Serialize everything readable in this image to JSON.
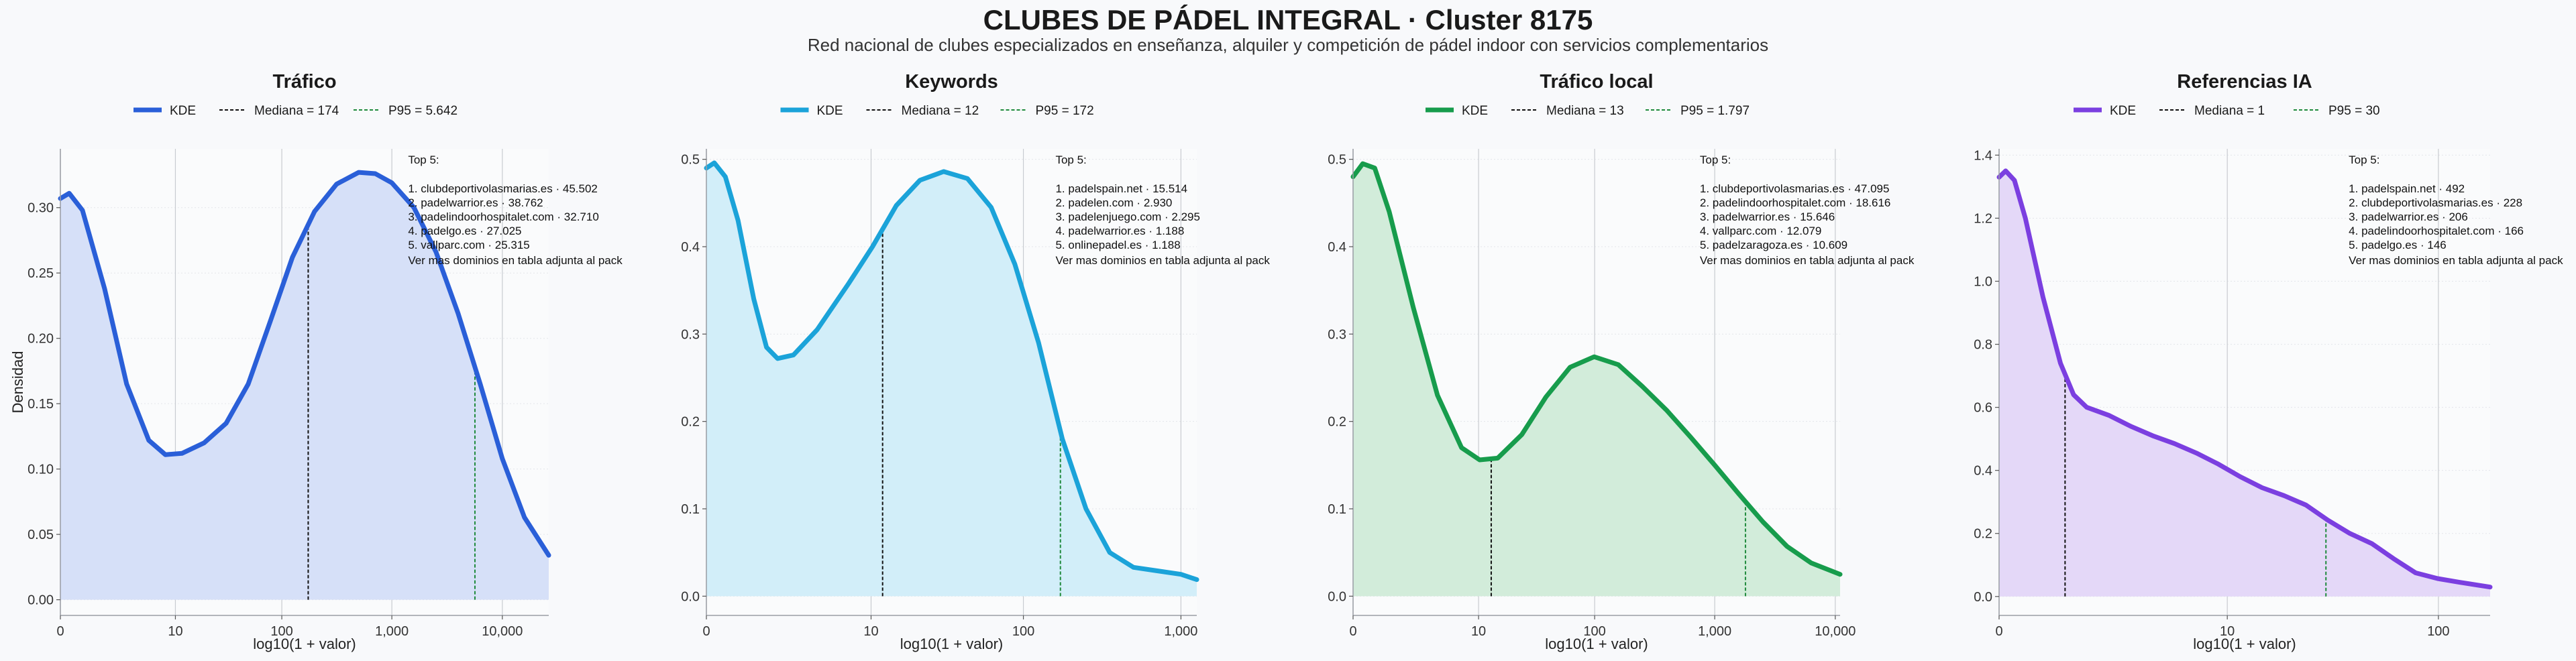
{
  "header": {
    "title": "CLUBES DE PÁDEL INTEGRAL · Cluster 8175",
    "subtitle": "Red nacional de clubes especializados en enseñanza, alquiler y competición de pádel indoor con servicios complementarios"
  },
  "shared": {
    "xlabel": "log10(1 + valor)",
    "ylabel": "Densidad",
    "legend_kde": "KDE",
    "top_title": "Top 5:",
    "footnote": "Ver mas dominios en tabla adjunta al pack",
    "median_color": "#111111",
    "p95_color": "#1f8a3c"
  },
  "chart_data": [
    {
      "type": "area",
      "title": "Tráfico",
      "color": "#2a5fd8",
      "fill": "#d6e0f8",
      "xlabel": "log10(1 + valor)",
      "ylabel": "Densidad",
      "xlim": [
        0,
        4.42
      ],
      "ylim": [
        -0.012,
        0.345
      ],
      "xticks": [
        {
          "v": 0,
          "label": "0"
        },
        {
          "v": 1.041,
          "label": "10"
        },
        {
          "v": 2.004,
          "label": "100"
        },
        {
          "v": 3.0,
          "label": "1,000"
        },
        {
          "v": 4.0,
          "label": "10,000"
        }
      ],
      "yticks": [
        {
          "v": 0,
          "label": "0.00"
        },
        {
          "v": 0.05,
          "label": "0.05"
        },
        {
          "v": 0.1,
          "label": "0.10"
        },
        {
          "v": 0.15,
          "label": "0.15"
        },
        {
          "v": 0.2,
          "label": "0.20"
        },
        {
          "v": 0.25,
          "label": "0.25"
        },
        {
          "v": 0.3,
          "label": "0.30"
        }
      ],
      "curve": [
        [
          0,
          0.307
        ],
        [
          0.08,
          0.311
        ],
        [
          0.2,
          0.298
        ],
        [
          0.4,
          0.238
        ],
        [
          0.6,
          0.165
        ],
        [
          0.8,
          0.122
        ],
        [
          0.95,
          0.111
        ],
        [
          1.1,
          0.112
        ],
        [
          1.3,
          0.12
        ],
        [
          1.5,
          0.135
        ],
        [
          1.7,
          0.165
        ],
        [
          1.9,
          0.213
        ],
        [
          2.1,
          0.262
        ],
        [
          2.3,
          0.297
        ],
        [
          2.5,
          0.318
        ],
        [
          2.7,
          0.327
        ],
        [
          2.85,
          0.326
        ],
        [
          3.0,
          0.319
        ],
        [
          3.2,
          0.3
        ],
        [
          3.4,
          0.266
        ],
        [
          3.6,
          0.219
        ],
        [
          3.8,
          0.165
        ],
        [
          4.0,
          0.108
        ],
        [
          4.2,
          0.063
        ],
        [
          4.42,
          0.034
        ]
      ],
      "median": {
        "x": 2.243,
        "label": "Mediana = 174"
      },
      "p95": {
        "x": 3.752,
        "label": "P95 = 5.642"
      },
      "top5": [
        "1. clubdeportivolasmarias.es · 45.502",
        "2. padelwarrior.es · 38.762",
        "3. padelindoorhospitalet.com · 32.710",
        "4. padelgo.es · 27.025",
        "5. vallparc.com · 25.315"
      ]
    },
    {
      "type": "area",
      "title": "Keywords",
      "color": "#1ba3d9",
      "fill": "#d2eef9",
      "xlabel": "log10(1 + valor)",
      "xlim": [
        0,
        3.1
      ],
      "ylim": [
        -0.022,
        0.512
      ],
      "xticks": [
        {
          "v": 0,
          "label": "0"
        },
        {
          "v": 1.041,
          "label": "10"
        },
        {
          "v": 2.004,
          "label": "100"
        },
        {
          "v": 3.0,
          "label": "1,000"
        }
      ],
      "yticks": [
        {
          "v": 0,
          "label": "0.0"
        },
        {
          "v": 0.1,
          "label": "0.1"
        },
        {
          "v": 0.2,
          "label": "0.2"
        },
        {
          "v": 0.3,
          "label": "0.3"
        },
        {
          "v": 0.4,
          "label": "0.4"
        },
        {
          "v": 0.5,
          "label": "0.5"
        }
      ],
      "curve": [
        [
          0,
          0.49
        ],
        [
          0.05,
          0.496
        ],
        [
          0.12,
          0.48
        ],
        [
          0.2,
          0.43
        ],
        [
          0.3,
          0.34
        ],
        [
          0.38,
          0.285
        ],
        [
          0.45,
          0.272
        ],
        [
          0.55,
          0.276
        ],
        [
          0.7,
          0.305
        ],
        [
          0.9,
          0.358
        ],
        [
          1.05,
          0.4
        ],
        [
          1.2,
          0.447
        ],
        [
          1.35,
          0.476
        ],
        [
          1.5,
          0.486
        ],
        [
          1.65,
          0.478
        ],
        [
          1.8,
          0.445
        ],
        [
          1.95,
          0.38
        ],
        [
          2.1,
          0.29
        ],
        [
          2.25,
          0.18
        ],
        [
          2.4,
          0.1
        ],
        [
          2.55,
          0.05
        ],
        [
          2.7,
          0.033
        ],
        [
          2.85,
          0.029
        ],
        [
          3.0,
          0.025
        ],
        [
          3.1,
          0.019
        ]
      ],
      "median": {
        "x": 1.114,
        "label": "Mediana = 12"
      },
      "p95": {
        "x": 2.238,
        "label": "P95 = 172"
      },
      "top5": [
        "1. padelspain.net · 15.514",
        "2. padelen.com · 2.930",
        "3. padelenjuego.com · 2.295",
        "4. padelwarrior.es · 1.188",
        "5. onlinepadel.es · 1.188"
      ]
    },
    {
      "type": "area",
      "title": "Tráfico local",
      "color": "#179c4c",
      "fill": "#d2ecda",
      "xlabel": "log10(1 + valor)",
      "xlim": [
        0,
        4.04
      ],
      "ylim": [
        -0.022,
        0.512
      ],
      "xticks": [
        {
          "v": 0,
          "label": "0"
        },
        {
          "v": 1.041,
          "label": "10"
        },
        {
          "v": 2.004,
          "label": "100"
        },
        {
          "v": 3.0,
          "label": "1,000"
        },
        {
          "v": 4.0,
          "label": "10,000"
        }
      ],
      "yticks": [
        {
          "v": 0,
          "label": "0.0"
        },
        {
          "v": 0.1,
          "label": "0.1"
        },
        {
          "v": 0.2,
          "label": "0.2"
        },
        {
          "v": 0.3,
          "label": "0.3"
        },
        {
          "v": 0.4,
          "label": "0.4"
        },
        {
          "v": 0.5,
          "label": "0.5"
        }
      ],
      "curve": [
        [
          0,
          0.48
        ],
        [
          0.08,
          0.495
        ],
        [
          0.18,
          0.49
        ],
        [
          0.3,
          0.44
        ],
        [
          0.5,
          0.33
        ],
        [
          0.7,
          0.23
        ],
        [
          0.9,
          0.17
        ],
        [
          1.05,
          0.156
        ],
        [
          1.2,
          0.158
        ],
        [
          1.4,
          0.185
        ],
        [
          1.6,
          0.228
        ],
        [
          1.8,
          0.262
        ],
        [
          2.0,
          0.274
        ],
        [
          2.2,
          0.265
        ],
        [
          2.4,
          0.24
        ],
        [
          2.6,
          0.213
        ],
        [
          2.8,
          0.182
        ],
        [
          3.0,
          0.15
        ],
        [
          3.2,
          0.117
        ],
        [
          3.4,
          0.085
        ],
        [
          3.6,
          0.057
        ],
        [
          3.8,
          0.038
        ],
        [
          4.04,
          0.025
        ]
      ],
      "median": {
        "x": 1.146,
        "label": "Mediana = 13"
      },
      "p95": {
        "x": 3.255,
        "label": "P95 = 1.797"
      },
      "top5": [
        "1. clubdeportivolasmarias.es · 47.095",
        "2. padelindoorhospitalet.com · 18.616",
        "3. padelwarrior.es · 15.646",
        "4. vallparc.com · 12.079",
        "5. padelzaragoza.es · 10.609"
      ]
    },
    {
      "type": "area",
      "title": "Referencias IA",
      "color": "#7b3fe0",
      "fill": "#e4d8f8",
      "xlabel": "log10(1 + valor)",
      "xlim": [
        0,
        2.24
      ],
      "ylim": [
        -0.06,
        1.42
      ],
      "xticks": [
        {
          "v": 0,
          "label": "0"
        },
        {
          "v": 1.041,
          "label": "10"
        },
        {
          "v": 2.004,
          "label": "100"
        }
      ],
      "yticks": [
        {
          "v": 0,
          "label": "0.0"
        },
        {
          "v": 0.2,
          "label": "0.2"
        },
        {
          "v": 0.4,
          "label": "0.4"
        },
        {
          "v": 0.6,
          "label": "0.6"
        },
        {
          "v": 0.8,
          "label": "0.8"
        },
        {
          "v": 1.0,
          "label": "1.0"
        },
        {
          "v": 1.2,
          "label": "1.2"
        },
        {
          "v": 1.4,
          "label": "1.4"
        }
      ],
      "curve": [
        [
          0,
          1.33
        ],
        [
          0.03,
          1.35
        ],
        [
          0.07,
          1.32
        ],
        [
          0.12,
          1.2
        ],
        [
          0.2,
          0.95
        ],
        [
          0.28,
          0.74
        ],
        [
          0.34,
          0.64
        ],
        [
          0.4,
          0.6
        ],
        [
          0.5,
          0.575
        ],
        [
          0.6,
          0.54
        ],
        [
          0.7,
          0.51
        ],
        [
          0.8,
          0.485
        ],
        [
          0.9,
          0.455
        ],
        [
          1.0,
          0.42
        ],
        [
          1.1,
          0.38
        ],
        [
          1.2,
          0.345
        ],
        [
          1.3,
          0.32
        ],
        [
          1.4,
          0.29
        ],
        [
          1.5,
          0.242
        ],
        [
          1.6,
          0.2
        ],
        [
          1.7,
          0.168
        ],
        [
          1.8,
          0.12
        ],
        [
          1.9,
          0.075
        ],
        [
          2.0,
          0.057
        ],
        [
          2.1,
          0.045
        ],
        [
          2.24,
          0.03
        ]
      ],
      "median": {
        "x": 0.301,
        "label": "Mediana = 1"
      },
      "p95": {
        "x": 1.491,
        "label": "P95 = 30"
      },
      "top5": [
        "1. padelspain.net · 492",
        "2. clubdeportivolasmarias.es · 228",
        "3. padelwarrior.es · 206",
        "4. padelindoorhospitalet.com · 166",
        "5. padelgo.es · 146"
      ]
    }
  ]
}
